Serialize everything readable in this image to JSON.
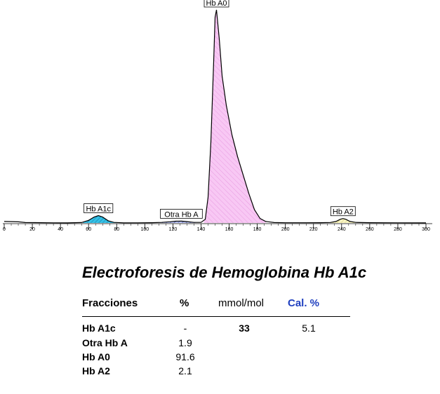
{
  "chart_data": {
    "type": "area",
    "xlim": [
      0,
      300
    ],
    "x_ticks": [
      0,
      20,
      40,
      60,
      80,
      100,
      120,
      140,
      160,
      180,
      200,
      220,
      240,
      260,
      280,
      300
    ],
    "profile": [
      [
        0,
        2.0
      ],
      [
        10,
        1.5
      ],
      [
        15,
        0.6
      ],
      [
        22,
        0.5
      ],
      [
        35,
        0.2
      ],
      [
        45,
        0.1
      ],
      [
        55,
        0.6
      ],
      [
        60,
        3.5
      ],
      [
        64,
        8.0
      ],
      [
        67,
        10.0
      ],
      [
        70,
        8.0
      ],
      [
        74,
        3.0
      ],
      [
        78,
        0.8
      ],
      [
        85,
        0.2
      ],
      [
        95,
        0.2
      ],
      [
        105,
        0.4
      ],
      [
        112,
        0.8
      ],
      [
        118,
        1.6
      ],
      [
        122,
        2.4
      ],
      [
        126,
        2.5
      ],
      [
        130,
        1.8
      ],
      [
        135,
        0.8
      ],
      [
        140,
        0.8
      ],
      [
        143,
        5
      ],
      [
        145,
        35
      ],
      [
        147,
        110
      ],
      [
        149,
        220
      ],
      [
        150,
        280
      ],
      [
        151,
        290
      ],
      [
        153,
        250
      ],
      [
        155,
        200
      ],
      [
        158,
        160
      ],
      [
        162,
        120
      ],
      [
        166,
        90
      ],
      [
        170,
        65
      ],
      [
        174,
        40
      ],
      [
        178,
        18
      ],
      [
        182,
        6
      ],
      [
        186,
        2
      ],
      [
        192,
        0.6
      ],
      [
        200,
        0.3
      ],
      [
        215,
        0.3
      ],
      [
        225,
        0.4
      ],
      [
        232,
        0.7
      ],
      [
        236,
        2
      ],
      [
        239,
        5
      ],
      [
        241,
        6.0
      ],
      [
        243,
        5
      ],
      [
        246,
        2
      ],
      [
        250,
        0.8
      ],
      [
        260,
        0.4
      ],
      [
        280,
        0.2
      ],
      [
        300,
        0.1
      ]
    ],
    "peaks": [
      {
        "name": "Hb A1c",
        "start": 56,
        "end": 80,
        "color": "#33c1e6",
        "stroke": "#1a6f99"
      },
      {
        "name": "Otra Hb A",
        "start": 110,
        "end": 136,
        "color": "#8a9ad9",
        "stroke": "#3a4aa0"
      },
      {
        "name": "Hb A0",
        "start": 142,
        "end": 186,
        "color": "#f3b8f0",
        "stroke": "#c050c0"
      },
      {
        "name": "Hb A2",
        "start": 232,
        "end": 250,
        "color": "#f5f0b0",
        "stroke": "#b0a040"
      }
    ]
  },
  "title": "Electroforesis de Hemoglobina Hb A1c",
  "table": {
    "headers": {
      "fracciones": "Fracciones",
      "pct": "%",
      "mmol": "mmol/mol",
      "cal": "Cal. %"
    },
    "rows": [
      {
        "name": "Hb A1c",
        "pct": "-",
        "mmol": "33",
        "cal": "5.1"
      },
      {
        "name": "Otra Hb A",
        "pct": "1.9",
        "mmol": "",
        "cal": ""
      },
      {
        "name": "Hb A0",
        "pct": "91.6",
        "mmol": "",
        "cal": ""
      },
      {
        "name": "Hb A2",
        "pct": "2.1",
        "mmol": "",
        "cal": ""
      }
    ]
  }
}
